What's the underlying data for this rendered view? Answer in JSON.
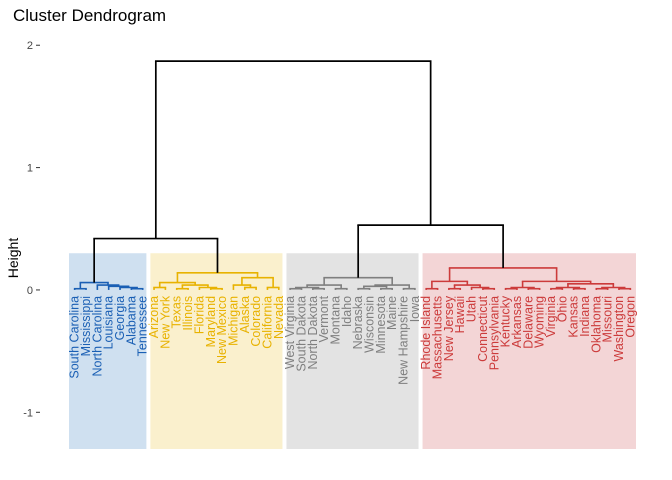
{
  "chart_data": {
    "type": "dendrogram",
    "title": "Cluster Dendrogram",
    "xlabel": "",
    "ylabel": "Height",
    "ylim": [
      -1.3,
      2.1
    ],
    "yticks": [
      2,
      1,
      0,
      -1
    ],
    "rect_bottom": -1.3,
    "rect_top": 0.3,
    "grid": false,
    "clusters": [
      {
        "color": "#1a5fb4",
        "fill": "#cfe0f0",
        "leaves": [
          "South Carolina",
          "Mississippi",
          "North Carolina",
          "Louisiana",
          "Georgia",
          "Alabama",
          "Tennessee"
        ]
      },
      {
        "color": "#e8b200",
        "fill": "#faf0cd",
        "leaves": [
          "Arizona",
          "New York",
          "Texas",
          "Illinois",
          "Florida",
          "Maryland",
          "New Mexico",
          "Michigan",
          "Alaska",
          "Colorado",
          "California",
          "Nevada"
        ]
      },
      {
        "color": "#7f7f7f",
        "fill": "#e3e3e3",
        "leaves": [
          "West Virginia",
          "South Dakota",
          "North Dakota",
          "Vermont",
          "Montana",
          "Idaho",
          "Nebraska",
          "Wisconsin",
          "Minnesota",
          "Maine",
          "New Hampshire",
          "Iowa"
        ]
      },
      {
        "color": "#cc3b3b",
        "fill": "#f3d5d6",
        "leaves": [
          "Rhode Island",
          "Massachusetts",
          "New Jersey",
          "Hawaii",
          "Utah",
          "Connecticut",
          "Pennsylvania",
          "Kentucky",
          "Arkansas",
          "Delaware",
          "Wyoming",
          "Virginia",
          "Ohio",
          "Kansas",
          "Indiana",
          "Oklahoma",
          "Missouri",
          "Washington",
          "Oregon"
        ]
      }
    ],
    "tree": [
      [
        [
          [
            "South Carolina",
            "Mississippi",
            0.01
          ],
          [
            "North Carolina",
            [
              "Louisiana",
              [
                "Georgia",
                [
                  "Alabama",
                  "Tennessee",
                  0.01
                ],
                0.02
              ],
              0.03
            ],
            0.04
          ],
          0.06
        ],
        [
          [
            [
              "Arizona",
              "New York",
              0.02
            ],
            [
              [
                "Texas",
                "Illinois",
                0.01
              ],
              [
                "Florida",
                [
                  "Maryland",
                  "New Mexico",
                  0.01
                ],
                0.02
              ],
              0.04
            ],
            0.06
          ],
          [
            [
              "Michigan",
              [
                "Alaska",
                "Colorado",
                0.02
              ],
              0.04
            ],
            [
              "California",
              "Nevada",
              0.02
            ],
            0.1
          ],
          0.14
        ],
        0.42
      ],
      [
        [
          [
            [
              [
                "West Virginia",
                "South Dakota",
                0.01
              ],
              [
                "North Dakota",
                "Vermont",
                0.01
              ],
              0.02
            ],
            [
              "Montana",
              "Idaho",
              0.01
            ],
            0.04
          ],
          [
            [
              [
                "Nebraska",
                "Wisconsin",
                0.01
              ],
              [
                "Minnesota",
                "Maine",
                0.01
              ],
              0.03
            ],
            [
              "New Hampshire",
              "Iowa",
              0.01
            ],
            0.04
          ],
          0.1
        ],
        [
          [
            [
              "Rhode Island",
              "Massachusetts",
              0.01
            ],
            [
              [
                "New Jersey",
                "Hawaii",
                0.01
              ],
              [
                "Utah",
                [
                  "Connecticut",
                  "Pennsylvania",
                  0.01
                ],
                0.02
              ],
              0.04
            ],
            0.07
          ],
          [
            [
              [
                "Kentucky",
                "Arkansas",
                0.01
              ],
              [
                "Delaware",
                "Wyoming",
                0.01
              ],
              0.02
            ],
            [
              [
                [
                  "Virginia",
                  "Ohio",
                  0.01
                ],
                [
                  "Kansas",
                  "Indiana",
                  0.01
                ],
                0.02
              ],
              [
                [
                  "Oklahoma",
                  "Missouri",
                  0.01
                ],
                [
                  "Washington",
                  "Oregon",
                  0.01
                ],
                0.02
              ],
              0.05
            ],
            0.07
          ],
          0.18
        ],
        0.53
      ],
      1.87
    ]
  }
}
